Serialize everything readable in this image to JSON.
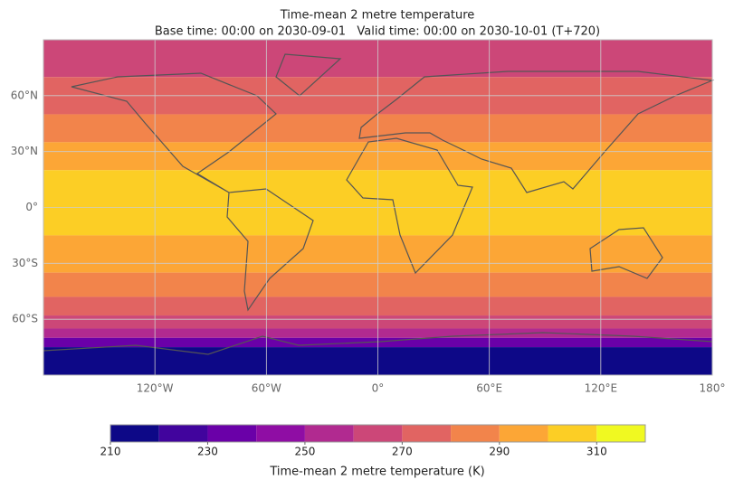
{
  "title": "Time-mean 2 metre temperature",
  "subtitle": "Base time: 00:00 on 2030-09-01   Valid time: 00:00 on 2030-10-01 (T+720)",
  "map": {
    "xlim": [
      -180,
      180
    ],
    "ylim": [
      -90,
      90
    ],
    "xticks": [
      {
        "value": -120,
        "label": "120°W"
      },
      {
        "value": -60,
        "label": "60°W"
      },
      {
        "value": 0,
        "label": "0°"
      },
      {
        "value": 60,
        "label": "60°E"
      },
      {
        "value": 120,
        "label": "120°E"
      },
      {
        "value": 180,
        "label": "180°"
      }
    ],
    "yticks": [
      {
        "value": 60,
        "label": "60°N"
      },
      {
        "value": 30,
        "label": "30°N"
      },
      {
        "value": 0,
        "label": "0°"
      },
      {
        "value": -30,
        "label": "30°S"
      },
      {
        "value": -60,
        "label": "60°S"
      }
    ],
    "grid": true,
    "bands": [
      {
        "lat": [
          90,
          70
        ],
        "value": 265
      },
      {
        "lat": [
          70,
          50
        ],
        "value": 275
      },
      {
        "lat": [
          50,
          35
        ],
        "value": 285
      },
      {
        "lat": [
          35,
          20
        ],
        "value": 295
      },
      {
        "lat": [
          20,
          -15
        ],
        "value": 305
      },
      {
        "lat": [
          -15,
          -35
        ],
        "value": 295
      },
      {
        "lat": [
          -35,
          -48
        ],
        "value": 285
      },
      {
        "lat": [
          -48,
          -58
        ],
        "value": 275
      },
      {
        "lat": [
          -58,
          -65
        ],
        "value": 265
      },
      {
        "lat": [
          -65,
          -70
        ],
        "value": 255
      },
      {
        "lat": [
          -70,
          -75
        ],
        "value": 235
      },
      {
        "lat": [
          -75,
          -90
        ],
        "value": 215
      }
    ]
  },
  "colorbar": {
    "label": "Time-mean 2 metre temperature (K)",
    "boundaries": [
      210,
      220,
      230,
      240,
      250,
      260,
      270,
      280,
      290,
      300,
      310,
      320
    ],
    "colors": [
      "#0d0887",
      "#41049d",
      "#6a00a8",
      "#8f0da4",
      "#b12a90",
      "#cc4778",
      "#e16462",
      "#f2844b",
      "#fca636",
      "#fcce25",
      "#f0f921"
    ],
    "ticks": [
      210,
      230,
      250,
      270,
      290,
      310
    ]
  }
}
